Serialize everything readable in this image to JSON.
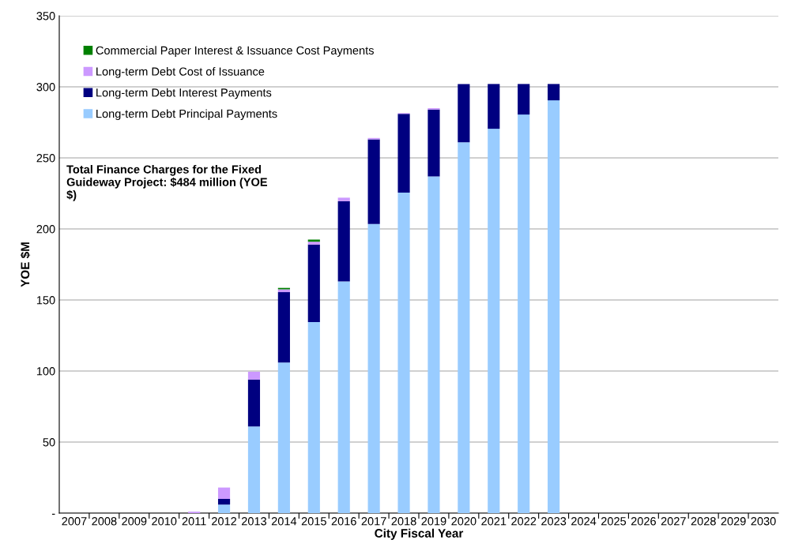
{
  "chart_data": {
    "type": "bar",
    "stacked": true,
    "xlabel": "City Fiscal Year",
    "ylabel": "YOE $M",
    "categories": [
      "2007",
      "2008",
      "2009",
      "2010",
      "2011",
      "2012",
      "2013",
      "2014",
      "2015",
      "2016",
      "2017",
      "2018",
      "2019",
      "2020",
      "2021",
      "2022",
      "2023",
      "2024",
      "2025",
      "2026",
      "2027",
      "2028",
      "2029",
      "2030"
    ],
    "series": [
      {
        "name": "Long-term Debt Principal Payments",
        "color": "#99ccff",
        "values": [
          null,
          null,
          null,
          null,
          null,
          6,
          61,
          106,
          134.5,
          163,
          203.5,
          225.5,
          237,
          261,
          270.5,
          280.5,
          290.5,
          null,
          null,
          null,
          null,
          null,
          null,
          null
        ]
      },
      {
        "name": "Long-term Debt Interest Payments",
        "color": "#000080",
        "values": [
          null,
          null,
          null,
          null,
          null,
          4,
          33,
          49.5,
          54.5,
          56.5,
          59.5,
          55.5,
          47,
          41,
          31.5,
          21.5,
          11.5,
          null,
          null,
          null,
          null,
          null,
          null,
          null
        ]
      },
      {
        "name": "Long-term Debt Cost of Issuance",
        "color": "#cc99ff",
        "values": [
          null,
          null,
          null,
          null,
          1,
          8,
          5.5,
          2,
          2,
          2.5,
          1,
          0.5,
          1,
          null,
          null,
          null,
          null,
          null,
          null,
          null,
          null,
          null,
          null,
          null
        ]
      },
      {
        "name": "Commercial Paper Interest & Issuance Cost Payments",
        "color": "#008000",
        "values": [
          null,
          null,
          null,
          null,
          null,
          null,
          null,
          1,
          1.5,
          null,
          null,
          null,
          null,
          null,
          null,
          null,
          null,
          null,
          null,
          null,
          null,
          null,
          null,
          null
        ]
      }
    ],
    "ylim": [
      0,
      350
    ],
    "yticks": [
      {
        "value": 0,
        "label": "-"
      },
      50,
      100,
      150,
      200,
      250,
      300,
      350
    ],
    "grid": "y",
    "legend": "top left",
    "annotations": [
      "Total Finance Charges for the Fixed Guideway Project: $484 million (YOE $)"
    ]
  }
}
